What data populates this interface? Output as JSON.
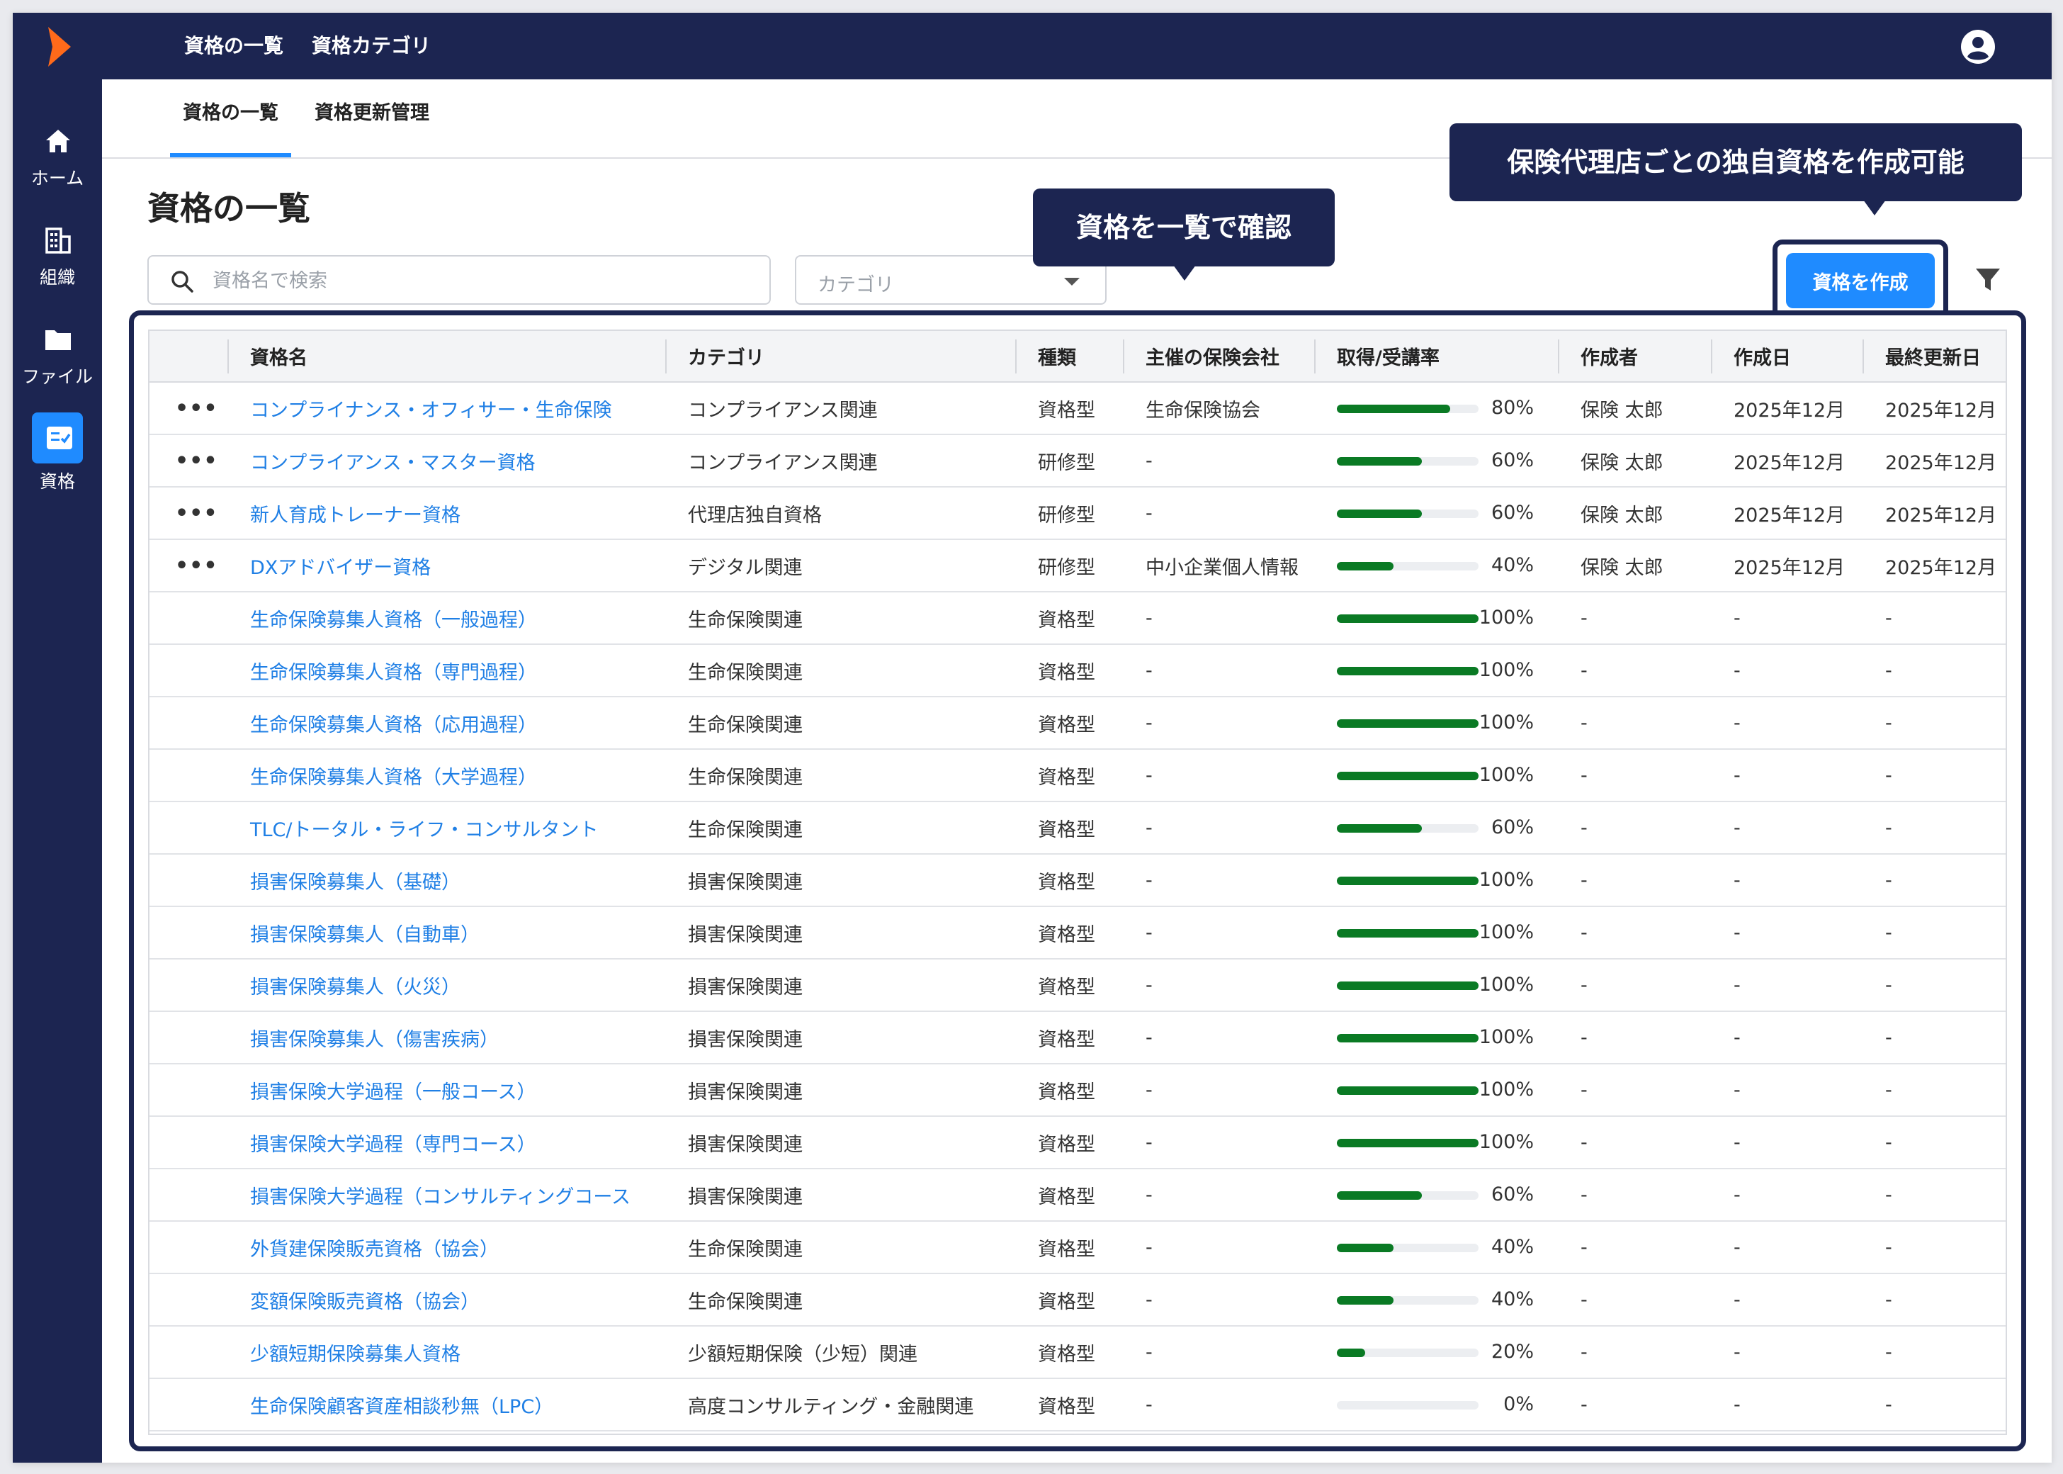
{
  "topnav": {
    "items": [
      "資格の一覧",
      "資格カテゴリ"
    ]
  },
  "sidebar": {
    "items": [
      {
        "label": "ホーム",
        "icon": "home-icon"
      },
      {
        "label": "組織",
        "icon": "organization-icon"
      },
      {
        "label": "ファイル",
        "icon": "folder-icon"
      },
      {
        "label": "資格",
        "icon": "qualification-icon",
        "active": true
      }
    ]
  },
  "subnav": {
    "items": [
      "資格の一覧",
      "資格更新管理"
    ],
    "active": 0
  },
  "page": {
    "title": "資格の一覧"
  },
  "search": {
    "placeholder": "資格名で検索"
  },
  "category_select": {
    "placeholder": "カテゴリ"
  },
  "callouts": {
    "list": "資格を一覧で確認",
    "create": "保険代理店ごとの独自資格を作成可能"
  },
  "create_button": {
    "label": "資格を作成"
  },
  "colors": {
    "navy": "#1c2551",
    "accent": "#1f8bff",
    "link": "#1f7fe5",
    "progress": "#0a7a24"
  },
  "table": {
    "headers": [
      "資格名",
      "カテゴリ",
      "種類",
      "主催の保険会社",
      "取得/受講率",
      "作成者",
      "作成日",
      "最終更新日"
    ],
    "rows": [
      {
        "menu": "•••",
        "name": "コンプライナンス・オフィサー・生命保険",
        "category": "コンプライアンス関連",
        "type": "資格型",
        "org": "生命保険協会",
        "rate": 80,
        "rate_label": "80%",
        "creator": "保険 太郎",
        "created": "2025年12月",
        "updated": "2025年12月"
      },
      {
        "menu": "•••",
        "name": "コンプライアンス・マスター資格",
        "category": "コンプライアンス関連",
        "type": "研修型",
        "org": "-",
        "rate": 60,
        "rate_label": "60%",
        "creator": "保険 太郎",
        "created": "2025年12月",
        "updated": "2025年12月"
      },
      {
        "menu": "•••",
        "name": "新人育成トレーナー資格",
        "category": "代理店独自資格",
        "type": "研修型",
        "org": "-",
        "rate": 60,
        "rate_label": "60%",
        "creator": "保険 太郎",
        "created": "2025年12月",
        "updated": "2025年12月"
      },
      {
        "menu": "•••",
        "name": "DXアドバイザー資格",
        "category": "デジタル関連",
        "type": "研修型",
        "org": "中小企業個人情報",
        "rate": 40,
        "rate_label": "40%",
        "creator": "保険 太郎",
        "created": "2025年12月",
        "updated": "2025年12月"
      },
      {
        "menu": "",
        "name": "生命保険募集人資格（一般過程）",
        "category": "生命保険関連",
        "type": "資格型",
        "org": "-",
        "rate": 100,
        "rate_label": "100%",
        "creator": "-",
        "created": "-",
        "updated": "-"
      },
      {
        "menu": "",
        "name": "生命保険募集人資格（専門過程）",
        "category": "生命保険関連",
        "type": "資格型",
        "org": "-",
        "rate": 100,
        "rate_label": "100%",
        "creator": "-",
        "created": "-",
        "updated": "-"
      },
      {
        "menu": "",
        "name": "生命保険募集人資格（応用過程）",
        "category": "生命保険関連",
        "type": "資格型",
        "org": "-",
        "rate": 100,
        "rate_label": "100%",
        "creator": "-",
        "created": "-",
        "updated": "-"
      },
      {
        "menu": "",
        "name": "生命保険募集人資格（大学過程）",
        "category": "生命保険関連",
        "type": "資格型",
        "org": "-",
        "rate": 100,
        "rate_label": "100%",
        "creator": "-",
        "created": "-",
        "updated": "-"
      },
      {
        "menu": "",
        "name": "TLC/トータル・ライフ・コンサルタント",
        "category": "生命保険関連",
        "type": "資格型",
        "org": "-",
        "rate": 60,
        "rate_label": "60%",
        "creator": "-",
        "created": "-",
        "updated": "-"
      },
      {
        "menu": "",
        "name": "損害保険募集人（基礎）",
        "category": "損害保険関連",
        "type": "資格型",
        "org": "-",
        "rate": 100,
        "rate_label": "100%",
        "creator": "-",
        "created": "-",
        "updated": "-"
      },
      {
        "menu": "",
        "name": "損害保険募集人（自動車）",
        "category": "損害保険関連",
        "type": "資格型",
        "org": "-",
        "rate": 100,
        "rate_label": "100%",
        "creator": "-",
        "created": "-",
        "updated": "-"
      },
      {
        "menu": "",
        "name": "損害保険募集人（火災）",
        "category": "損害保険関連",
        "type": "資格型",
        "org": "-",
        "rate": 100,
        "rate_label": "100%",
        "creator": "-",
        "created": "-",
        "updated": "-"
      },
      {
        "menu": "",
        "name": "損害保険募集人（傷害疾病）",
        "category": "損害保険関連",
        "type": "資格型",
        "org": "-",
        "rate": 100,
        "rate_label": "100%",
        "creator": "-",
        "created": "-",
        "updated": "-"
      },
      {
        "menu": "",
        "name": "損害保険大学過程（一般コース）",
        "category": "損害保険関連",
        "type": "資格型",
        "org": "-",
        "rate": 100,
        "rate_label": "100%",
        "creator": "-",
        "created": "-",
        "updated": "-"
      },
      {
        "menu": "",
        "name": "損害保険大学過程（専門コース）",
        "category": "損害保険関連",
        "type": "資格型",
        "org": "-",
        "rate": 100,
        "rate_label": "100%",
        "creator": "-",
        "created": "-",
        "updated": "-"
      },
      {
        "menu": "",
        "name": "損害保険大学過程（コンサルティングコース",
        "category": "損害保険関連",
        "type": "資格型",
        "org": "-",
        "rate": 60,
        "rate_label": "60%",
        "creator": "-",
        "created": "-",
        "updated": "-"
      },
      {
        "menu": "",
        "name": "外貨建保険販売資格（協会）",
        "category": "生命保険関連",
        "type": "資格型",
        "org": "-",
        "rate": 40,
        "rate_label": "40%",
        "creator": "-",
        "created": "-",
        "updated": "-"
      },
      {
        "menu": "",
        "name": "変額保険販売資格（協会）",
        "category": "生命保険関連",
        "type": "資格型",
        "org": "-",
        "rate": 40,
        "rate_label": "40%",
        "creator": "-",
        "created": "-",
        "updated": "-"
      },
      {
        "menu": "",
        "name": "少額短期保険募集人資格",
        "category": "少額短期保険（少短）関連",
        "type": "資格型",
        "org": "-",
        "rate": 20,
        "rate_label": "20%",
        "creator": "-",
        "created": "-",
        "updated": "-"
      },
      {
        "menu": "",
        "name": "生命保険顧客資産相談秒無（LPC）",
        "category": "高度コンサルティング・金融関連",
        "type": "資格型",
        "org": "-",
        "rate": 0,
        "rate_label": "0%",
        "creator": "-",
        "created": "-",
        "updated": "-"
      }
    ]
  }
}
